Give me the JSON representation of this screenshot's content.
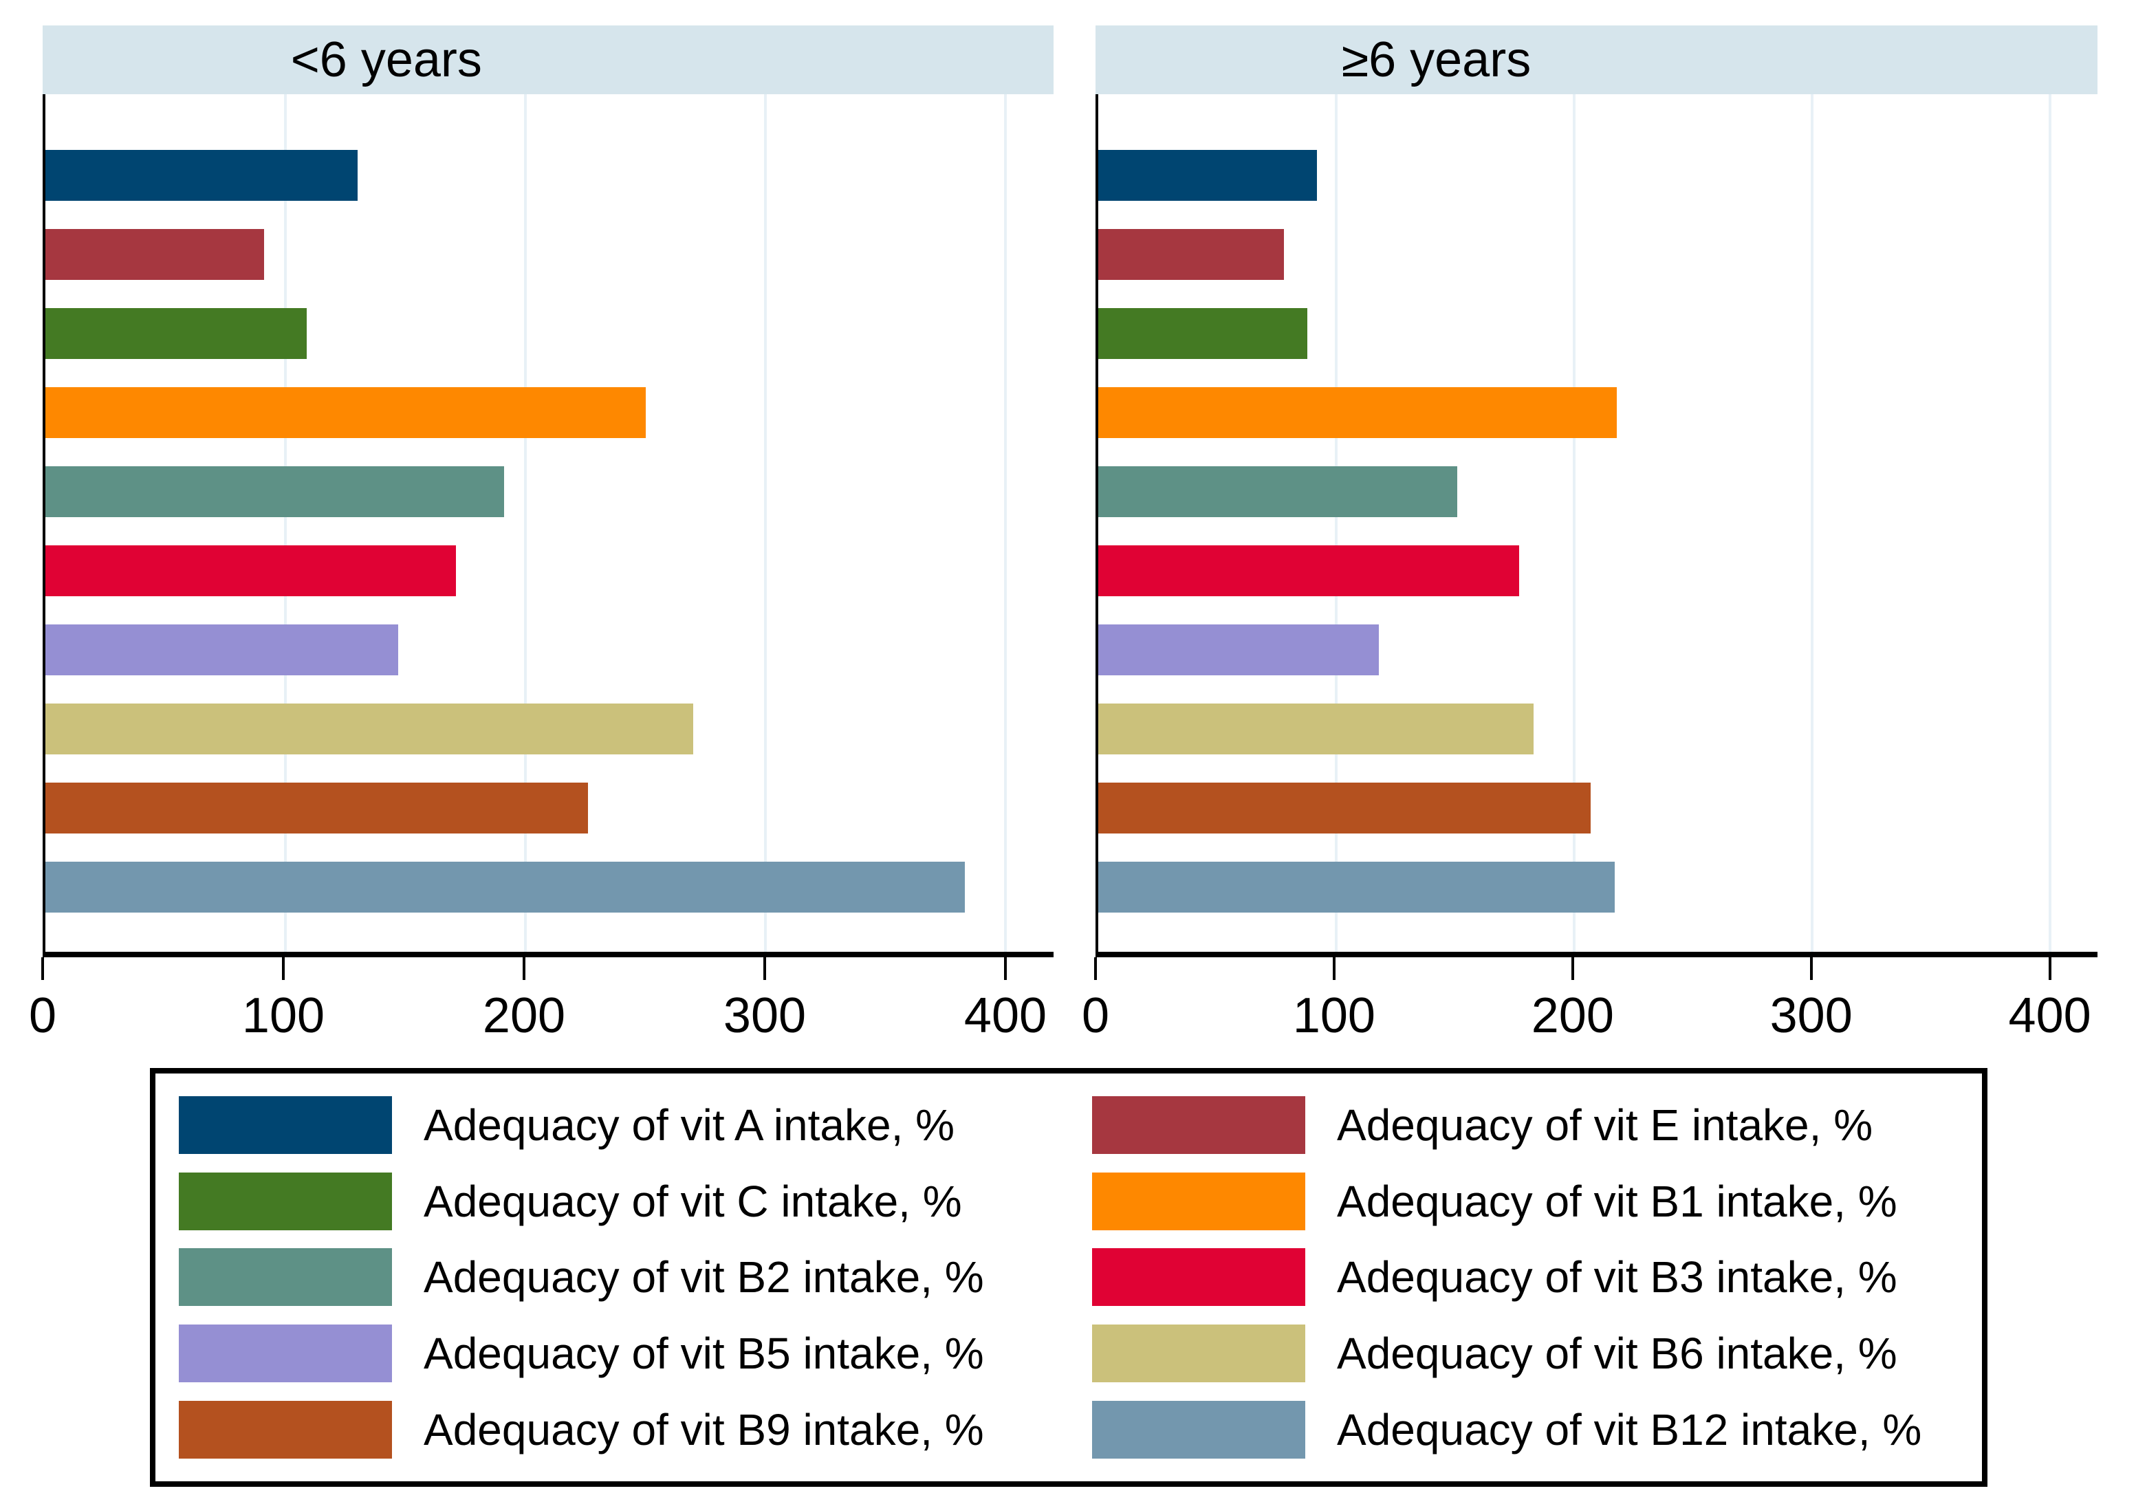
{
  "figure": {
    "background": "#ffffff",
    "panel_header_bg": "#d6e5ec",
    "gridline_color": "#e8f1f6",
    "axis_color": "#000000",
    "text_color": "#000000",
    "legend_border_color": "#000000"
  },
  "chart_data": {
    "type": "bar",
    "orientation": "horizontal",
    "unit": "%",
    "grid": true,
    "x_ticks": [
      0,
      100,
      200,
      300,
      400
    ],
    "xlim": [
      0,
      420
    ],
    "categories": [
      "Adequacy of vit A intake, %",
      "Adequacy of vit E intake, %",
      "Adequacy of vit C intake, %",
      "Adequacy of vit B1 intake, %",
      "Adequacy of vit B2 intake, %",
      "Adequacy of vit B3 intake, %",
      "Adequacy of vit B5 intake, %",
      "Adequacy of vit B6 intake, %",
      "Adequacy of vit B9 intake, %",
      "Adequacy of vit B12 intake, %"
    ],
    "series_colors": [
      "#004571",
      "#a63740",
      "#447a23",
      "#fe8800",
      "#5e9186",
      "#e00234",
      "#958fd3",
      "#cbc17b",
      "#b4511f",
      "#7397ae"
    ],
    "panels": [
      {
        "title": "<6 years",
        "values": [
          130,
          91,
          109,
          250,
          191,
          171,
          147,
          270,
          226,
          383
        ]
      },
      {
        "title": "≥6 years",
        "values": [
          92,
          78,
          88,
          218,
          151,
          177,
          118,
          183,
          207,
          217
        ]
      }
    ],
    "legend": {
      "position": "bottom",
      "columns": [
        [
          0,
          2,
          4,
          6,
          8
        ],
        [
          1,
          3,
          5,
          7,
          9
        ]
      ]
    }
  }
}
